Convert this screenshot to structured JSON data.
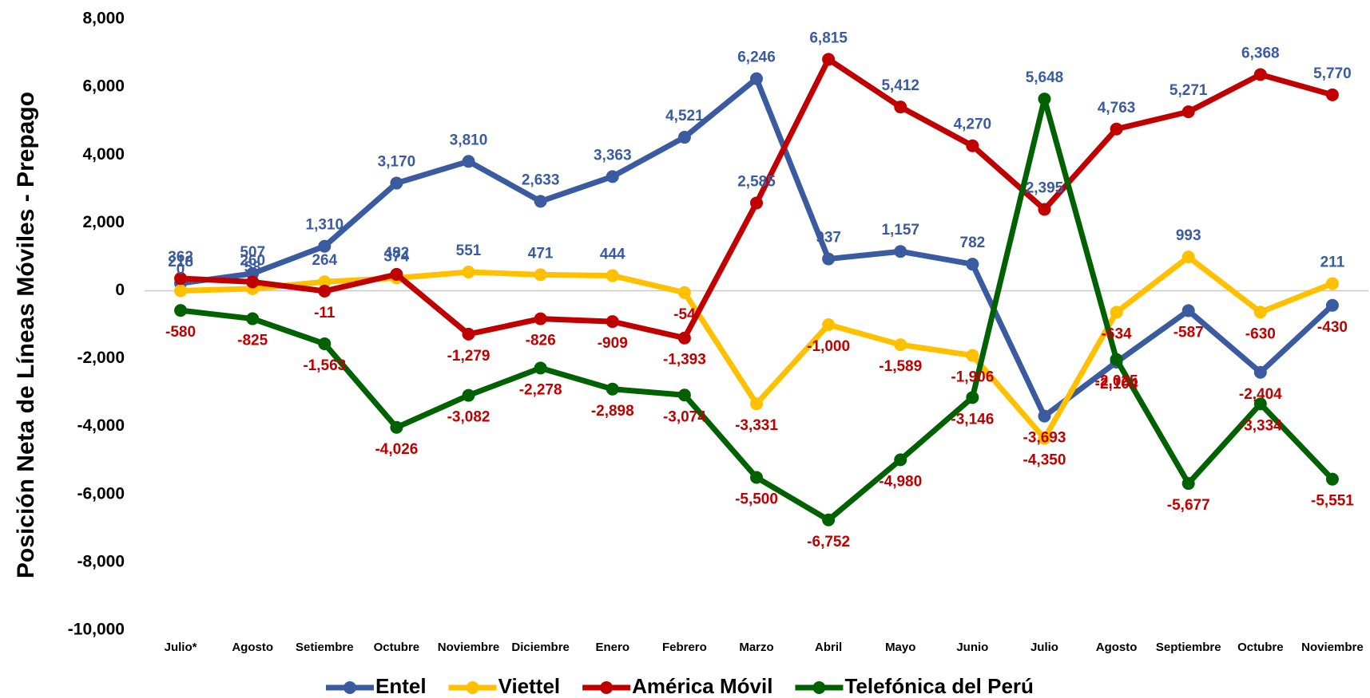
{
  "chart_data": {
    "type": "line",
    "y_label": "Posición Neta de Líneas Móviles - Prepago",
    "categories": [
      "Julio*",
      "Agosto",
      "Setiembre",
      "Octubre",
      "Noviembre",
      "Diciembre",
      "Enero",
      "Febrero",
      "Marzo",
      "Abril",
      "Mayo",
      "Junio",
      "Julio",
      "Agosto",
      "Septiembre",
      "Octubre",
      "Noviembre"
    ],
    "series": [
      {
        "name": "Entel",
        "color": "#3a5ba0",
        "values": [
          218,
          507,
          1310,
          3170,
          3810,
          2633,
          3363,
          4521,
          6246,
          937,
          1157,
          782,
          -3693,
          -2104,
          -587,
          -2404,
          -430
        ],
        "value_labels": [
          "218",
          "507",
          "1,310",
          "3,170",
          "3,810",
          "2,633",
          "3,363",
          "4,521",
          "6,246",
          "937",
          "1,157",
          "782",
          "-3,693",
          "-2,104",
          "-587",
          "-2,404",
          "-430"
        ]
      },
      {
        "name": "Viettel",
        "color": "#ffc000",
        "values": [
          0,
          58,
          264,
          374,
          551,
          471,
          444,
          -54,
          -3331,
          -1000,
          -1589,
          -1906,
          -4350,
          -634,
          993,
          -630,
          211
        ],
        "value_labels": [
          "0",
          "58",
          "264",
          "374",
          "551",
          "471",
          "444",
          "-54",
          "-3,331",
          "-1,000",
          "-1,589",
          "-1,906",
          "-4,350",
          "-634",
          "993",
          "-630",
          "211"
        ]
      },
      {
        "name": "América Móvil",
        "color": "#c00000",
        "values": [
          362,
          260,
          -11,
          482,
          -1279,
          -826,
          -909,
          -1393,
          2585,
          6815,
          5412,
          4270,
          2395,
          4763,
          5271,
          6368,
          5770
        ],
        "value_labels": [
          "362",
          "260",
          "-11",
          "482",
          "-1,279",
          "-826",
          "-909",
          "-1,393",
          "2,585",
          "6,815",
          "5,412",
          "4,270",
          "2,395",
          "4,763",
          "5,271",
          "6,368",
          "5,770"
        ]
      },
      {
        "name": "Telefónica del Perú",
        "color": "#006100",
        "values": [
          -580,
          -825,
          -1563,
          -4026,
          -3082,
          -2278,
          -2898,
          -3074,
          -5500,
          -6752,
          -4980,
          -3146,
          5648,
          -2025,
          -5677,
          -3334,
          -5551
        ],
        "value_labels": [
          "-580",
          "-825",
          "-1,563",
          "-4,026",
          "-3,082",
          "-2,278",
          "-2,898",
          "-3,074",
          "-5,500",
          "-6,752",
          "-4,980",
          "-3,146",
          "5,648",
          "-2,025",
          "-5,677",
          "-3,334",
          "-5,551"
        ]
      }
    ],
    "ylim": [
      -10000,
      8000
    ],
    "yticks": [
      {
        "value": -10000,
        "label": "-10,000"
      },
      {
        "value": -8000,
        "label": "-8,000"
      },
      {
        "value": -6000,
        "label": "-6,000"
      },
      {
        "value": -4000,
        "label": "-4,000"
      },
      {
        "value": -2000,
        "label": "-2,000"
      },
      0,
      {
        "value": 2000,
        "label": "2,000"
      },
      {
        "value": 4000,
        "label": "4,000"
      },
      {
        "value": 6000,
        "label": "6,000"
      },
      {
        "value": 8000,
        "label": "8,000"
      }
    ],
    "legend": "bottom"
  }
}
